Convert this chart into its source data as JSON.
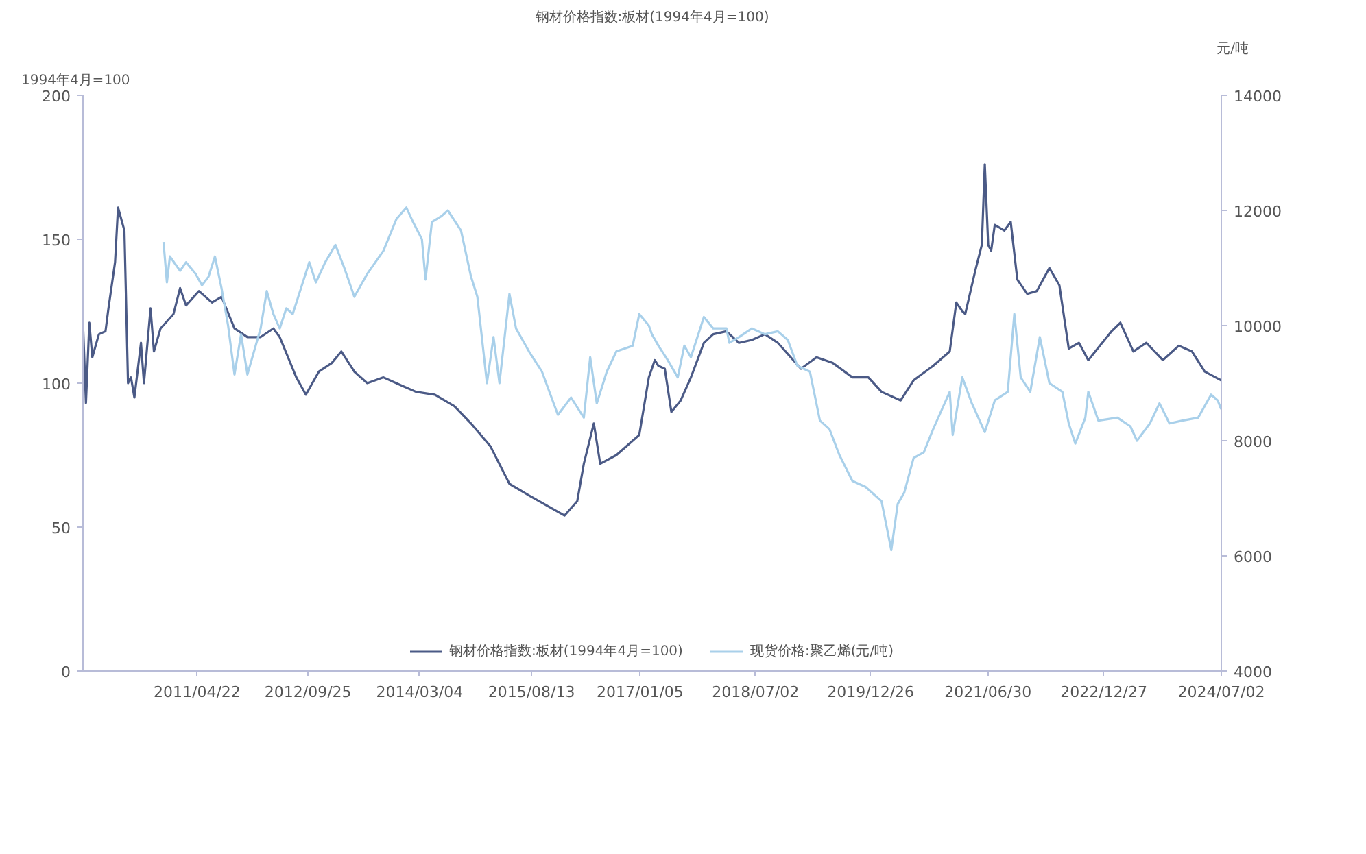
{
  "chart_data": {
    "type": "line",
    "title": "钢材价格指数:板材(1994年4月=100)",
    "ylabel": "1994年4月=100",
    "y2label": "元/吨",
    "xlim": [
      "2009-11-01",
      "2024-07-02"
    ],
    "xticks": [
      {
        "value": "2011-04-22",
        "label": "2011/04/22"
      },
      {
        "value": "2012-09-25",
        "label": "2012/09/25"
      },
      {
        "value": "2014-03-04",
        "label": "2014/03/04"
      },
      {
        "value": "2015-08-13",
        "label": "2015/08/13"
      },
      {
        "value": "2017-01-05",
        "label": "2017/01/05"
      },
      {
        "value": "2018-07-02",
        "label": "2018/07/02"
      },
      {
        "value": "2019-12-26",
        "label": "2019/12/26"
      },
      {
        "value": "2021-06-30",
        "label": "2021/06/30"
      },
      {
        "value": "2022-12-27",
        "label": "2022/12/27"
      },
      {
        "value": "2024-07-02",
        "label": "2024/07/02"
      }
    ],
    "ylim": [
      0,
      200
    ],
    "yticks": [
      0,
      50,
      100,
      150,
      200
    ],
    "y2lim": [
      4000,
      14000
    ],
    "y2ticks": [
      4000,
      6000,
      8000,
      10000,
      12000,
      14000
    ],
    "legend": "bottom",
    "grid": false,
    "marker": "none",
    "line_style": "solid",
    "series": [
      {
        "name": "钢材价格指数:板材(1994年4月=100)",
        "color": "#4b5a86",
        "x": [
          "2009-11-01",
          "2009-11-15",
          "2009-12-01",
          "2009-12-15",
          "2010-01-15",
          "2010-02-15",
          "2010-03-01",
          "2010-04-01",
          "2010-04-15",
          "2010-05-15",
          "2010-06-01",
          "2010-06-15",
          "2010-07-01",
          "2010-08-01",
          "2010-08-15",
          "2010-09-15",
          "2010-10-01",
          "2010-11-01",
          "2011-01-01",
          "2011-02-01",
          "2011-03-01",
          "2011-05-01",
          "2011-07-01",
          "2011-08-15",
          "2011-10-15",
          "2011-12-15",
          "2012-02-15",
          "2012-04-15",
          "2012-05-15",
          "2012-08-01",
          "2012-09-15",
          "2012-11-15",
          "2013-01-15",
          "2013-03-01",
          "2013-05-01",
          "2013-07-01",
          "2013-09-15",
          "2013-12-15",
          "2014-02-15",
          "2014-05-15",
          "2014-08-15",
          "2014-11-01",
          "2015-02-01",
          "2015-05-01",
          "2015-08-01",
          "2016-01-15",
          "2016-03-15",
          "2016-04-15",
          "2016-06-01",
          "2016-07-01",
          "2016-09-15",
          "2016-12-01",
          "2017-01-01",
          "2017-02-15",
          "2017-03-15",
          "2017-04-01",
          "2017-05-01",
          "2017-06-01",
          "2017-07-15",
          "2017-09-01",
          "2017-11-01",
          "2017-12-15",
          "2018-02-15",
          "2018-04-15",
          "2018-06-15",
          "2018-08-15",
          "2018-10-15",
          "2019-02-01",
          "2019-04-15",
          "2019-07-01",
          "2019-10-01",
          "2019-12-15",
          "2020-02-15",
          "2020-05-15",
          "2020-07-15",
          "2020-10-15",
          "2021-01-01",
          "2021-02-01",
          "2021-03-01",
          "2021-03-15",
          "2021-05-01",
          "2021-06-01",
          "2021-06-15",
          "2021-07-01",
          "2021-07-15",
          "2021-08-01",
          "2021-09-15",
          "2021-10-15",
          "2021-11-15",
          "2022-01-01",
          "2022-02-15",
          "2022-04-15",
          "2022-06-01",
          "2022-07-15",
          "2022-09-01",
          "2022-10-15",
          "2023-02-01",
          "2023-03-15",
          "2023-05-15",
          "2023-07-15",
          "2023-10-01",
          "2023-12-15",
          "2024-02-15",
          "2024-04-15",
          "2024-07-01"
        ],
        "values": [
          121,
          93,
          121,
          109,
          117,
          118,
          126,
          142,
          161,
          153,
          100,
          102,
          95,
          114,
          100,
          126,
          111,
          119,
          124,
          133,
          127,
          132,
          128,
          130,
          119,
          116,
          116,
          119,
          116,
          102,
          96,
          104,
          107,
          111,
          104,
          100,
          102,
          99,
          97,
          96,
          92,
          86,
          78,
          65,
          61,
          54,
          59,
          72,
          86,
          72,
          75,
          80,
          82,
          102,
          108,
          106,
          105,
          90,
          94,
          102,
          114,
          117,
          118,
          114,
          115,
          117,
          114,
          105,
          109,
          107,
          102,
          102,
          97,
          94,
          101,
          106,
          111,
          128,
          125,
          124,
          139,
          148,
          176,
          148,
          146,
          155,
          153,
          156,
          136,
          131,
          132,
          140,
          134,
          112,
          114,
          108,
          118,
          121,
          111,
          114,
          108,
          113,
          111,
          104,
          101
        ]
      },
      {
        "name": "现货价格:聚乙烯(元/吨)",
        "color": "#a9d0ea",
        "axis": "y2",
        "x": [
          "2010-11-15",
          "2010-12-01",
          "2010-12-15",
          "2011-02-01",
          "2011-03-01",
          "2011-04-15",
          "2011-05-15",
          "2011-06-15",
          "2011-07-15",
          "2011-08-15",
          "2011-09-15",
          "2011-10-15",
          "2011-11-15",
          "2011-12-15",
          "2012-01-15",
          "2012-02-15",
          "2012-03-15",
          "2012-04-15",
          "2012-05-15",
          "2012-06-15",
          "2012-07-15",
          "2012-10-01",
          "2012-11-01",
          "2012-12-15",
          "2013-02-01",
          "2013-03-15",
          "2013-05-01",
          "2013-07-01",
          "2013-09-15",
          "2013-11-15",
          "2014-01-01",
          "2014-02-01",
          "2014-03-15",
          "2014-04-01",
          "2014-05-01",
          "2014-06-15",
          "2014-07-15",
          "2014-09-15",
          "2014-11-01",
          "2014-12-01",
          "2015-01-15",
          "2015-02-15",
          "2015-03-15",
          "2015-05-01",
          "2015-06-01",
          "2015-08-01",
          "2015-10-01",
          "2015-12-15",
          "2016-02-15",
          "2016-04-15",
          "2016-05-15",
          "2016-06-15",
          "2016-08-01",
          "2016-09-15",
          "2016-12-01",
          "2017-01-01",
          "2017-02-15",
          "2017-03-01",
          "2017-04-01",
          "2017-05-15",
          "2017-07-01",
          "2017-08-01",
          "2017-09-01",
          "2017-11-01",
          "2017-12-15",
          "2018-02-15",
          "2018-03-01",
          "2018-04-15",
          "2018-06-15",
          "2018-08-15",
          "2018-10-15",
          "2018-12-01",
          "2019-01-15",
          "2019-03-15",
          "2019-05-01",
          "2019-06-15",
          "2019-08-01",
          "2019-10-01",
          "2019-12-01",
          "2020-02-15",
          "2020-04-01",
          "2020-05-01",
          "2020-06-01",
          "2020-07-15",
          "2020-09-01",
          "2020-10-15",
          "2021-01-01",
          "2021-01-15",
          "2021-03-01",
          "2021-04-15",
          "2021-06-15",
          "2021-08-01",
          "2021-10-01",
          "2021-11-01",
          "2021-12-01",
          "2022-01-15",
          "2022-03-01",
          "2022-04-15",
          "2022-06-15",
          "2022-07-15",
          "2022-08-15",
          "2022-10-01",
          "2022-10-15",
          "2022-12-01",
          "2023-03-01",
          "2023-05-01",
          "2023-06-01",
          "2023-08-01",
          "2023-09-15",
          "2023-11-01",
          "2024-01-01",
          "2024-03-15",
          "2024-05-15",
          "2024-06-15",
          "2024-07-01"
        ],
        "values": [
          11450,
          10750,
          11200,
          10950,
          11100,
          10900,
          10700,
          10850,
          11200,
          10650,
          10000,
          9150,
          9850,
          9150,
          9550,
          9950,
          10600,
          10200,
          9950,
          10300,
          10200,
          11100,
          10750,
          11100,
          11400,
          11000,
          10500,
          10900,
          11300,
          11850,
          12050,
          11800,
          11500,
          10800,
          11800,
          11900,
          12000,
          11650,
          10850,
          10500,
          9000,
          9800,
          9000,
          10550,
          9950,
          9550,
          9200,
          8450,
          8750,
          8400,
          9450,
          8650,
          9200,
          9550,
          9650,
          10200,
          10000,
          9850,
          9650,
          9400,
          9100,
          9650,
          9450,
          10150,
          9950,
          9950,
          9700,
          9800,
          9950,
          9850,
          9900,
          9750,
          9300,
          9200,
          8350,
          8200,
          7750,
          7300,
          7200,
          6950,
          6100,
          6900,
          7100,
          7700,
          7800,
          8200,
          8850,
          8100,
          9100,
          8650,
          8150,
          8700,
          8850,
          10200,
          9100,
          8850,
          9800,
          9000,
          8850,
          8300,
          7950,
          8400,
          8850,
          8350,
          8400,
          8250,
          8000,
          8300,
          8650,
          8300,
          8350,
          8400,
          8800,
          8700,
          8550
        ]
      }
    ]
  }
}
